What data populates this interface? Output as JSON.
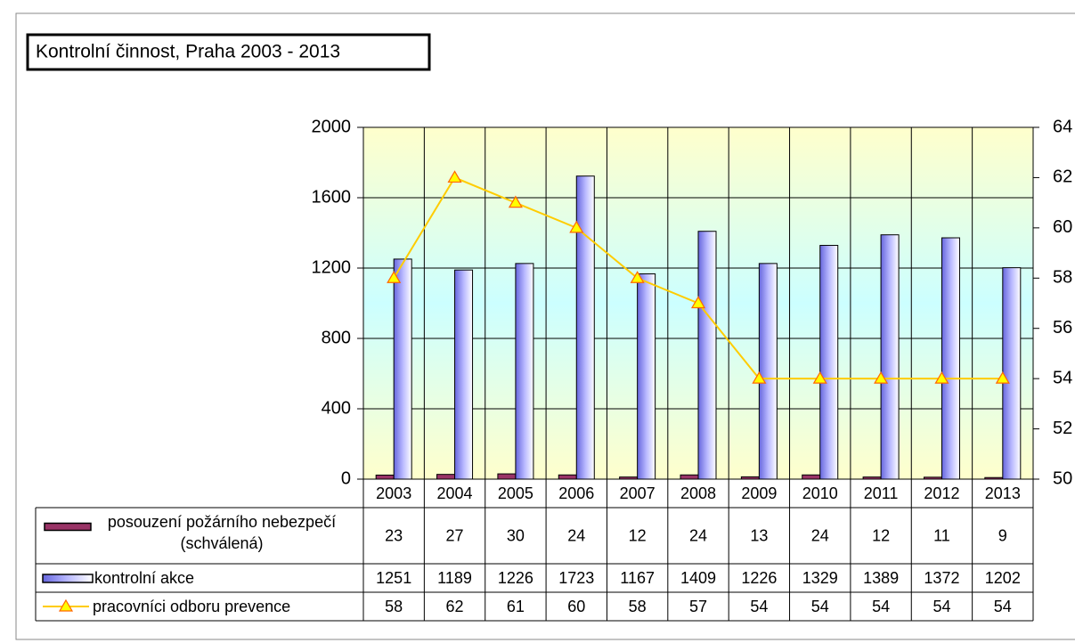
{
  "chart_data": {
    "type": "bar-line",
    "title": "Kontrolní činnost, Praha 2003 - 2013",
    "categories": [
      "2003",
      "2004",
      "2005",
      "2006",
      "2007",
      "2008",
      "2009",
      "2010",
      "2011",
      "2012",
      "2013"
    ],
    "series": [
      {
        "name": "posouzení požárního nebezpečí (schválená)",
        "color": "#993366",
        "type": "bar",
        "values": [
          23,
          27,
          30,
          24,
          12,
          24,
          13,
          24,
          12,
          11,
          9
        ]
      },
      {
        "name": "kontrolní akce",
        "color": "#9999ff",
        "type": "bar",
        "values": [
          1251,
          1189,
          1226,
          1723,
          1167,
          1409,
          1226,
          1329,
          1389,
          1372,
          1202
        ]
      },
      {
        "name": "pracovníci odboru prevence",
        "color": "#ffcc00",
        "type": "line",
        "axis": "y2",
        "values": [
          58,
          62,
          61,
          60,
          58,
          57,
          54,
          54,
          54,
          54,
          54
        ]
      }
    ],
    "ylim": [
      0,
      2000
    ],
    "yticks": [
      0,
      400,
      800,
      1200,
      1600,
      2000
    ],
    "y2lim": [
      50,
      64
    ],
    "y2ticks": [
      50,
      52,
      54,
      56,
      58,
      60,
      62,
      64
    ],
    "grid": true
  }
}
